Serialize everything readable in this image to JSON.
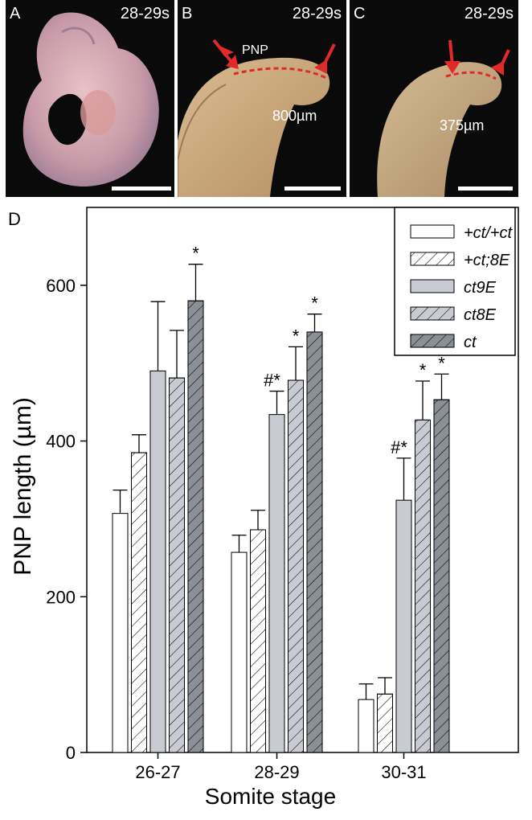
{
  "panels": [
    {
      "label": "A",
      "stage": "28-29s"
    },
    {
      "label": "B",
      "stage": "28-29s",
      "annotation": "PNP",
      "measure": "800µm"
    },
    {
      "label": "C",
      "stage": "28-29s",
      "measure": "375µm"
    }
  ],
  "chart_data": {
    "type": "bar",
    "panel_label": "D",
    "categories": [
      "26-27",
      "28-29",
      "30-31"
    ],
    "xlabel": "Somite stage",
    "ylabel": "PNP length (µm)",
    "ylim": [
      0,
      700
    ],
    "yticks": [
      0,
      200,
      400,
      600
    ],
    "legend_position": "top-right",
    "series": [
      {
        "name": "+ct/+ct",
        "fill": "#ffffff",
        "hatch": false,
        "values": [
          307,
          257,
          68
        ],
        "errors": [
          30,
          22,
          20
        ],
        "marks": [
          "",
          "",
          ""
        ]
      },
      {
        "name": "+ct;8E",
        "fill": "#ffffff",
        "hatch": true,
        "values": [
          385,
          286,
          75
        ],
        "errors": [
          23,
          25,
          21
        ],
        "marks": [
          "",
          "",
          ""
        ]
      },
      {
        "name": "ct9E",
        "fill": "#c8ccd2",
        "hatch": false,
        "values": [
          490,
          434,
          324
        ],
        "errors": [
          89,
          30,
          54
        ],
        "marks": [
          "",
          "#*",
          "#*"
        ]
      },
      {
        "name": "ct8E",
        "fill": "#c8ccd2",
        "hatch": true,
        "values": [
          481,
          478,
          427
        ],
        "errors": [
          61,
          43,
          50
        ],
        "marks": [
          "",
          "*",
          "*"
        ]
      },
      {
        "name": "ct",
        "fill": "#8a9096",
        "hatch": true,
        "values": [
          580,
          540,
          453
        ],
        "errors": [
          47,
          23,
          33
        ],
        "marks": [
          "*",
          "*",
          "*"
        ]
      }
    ]
  }
}
